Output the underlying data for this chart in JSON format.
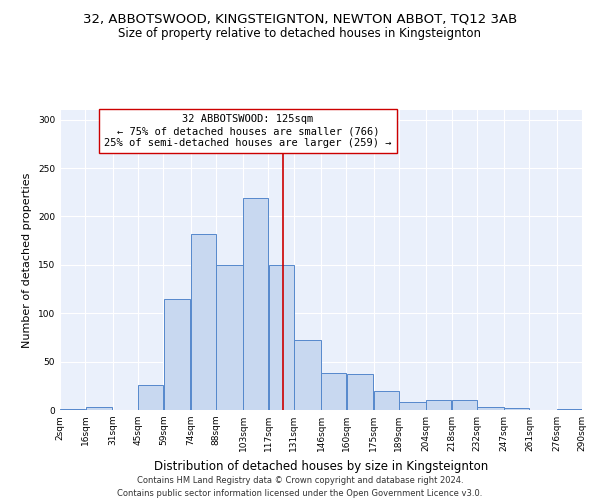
{
  "title": "32, ABBOTSWOOD, KINGSTEIGNTON, NEWTON ABBOT, TQ12 3AB",
  "subtitle": "Size of property relative to detached houses in Kingsteignton",
  "xlabel": "Distribution of detached houses by size in Kingsteignton",
  "ylabel": "Number of detached properties",
  "footer_line1": "Contains HM Land Registry data © Crown copyright and database right 2024.",
  "footer_line2": "Contains public sector information licensed under the Open Government Licence v3.0.",
  "annotation_line1": "32 ABBOTSWOOD: 125sqm",
  "annotation_line2": "← 75% of detached houses are smaller (766)",
  "annotation_line3": "25% of semi-detached houses are larger (259) →",
  "bar_color": "#c8d8f0",
  "bar_edge_color": "#5588cc",
  "vline_color": "#cc0000",
  "vline_x": 125,
  "bin_edges": [
    2,
    16,
    31,
    45,
    59,
    74,
    88,
    103,
    117,
    131,
    146,
    160,
    175,
    189,
    204,
    218,
    232,
    247,
    261,
    276,
    290
  ],
  "bar_heights": [
    1,
    3,
    0,
    26,
    115,
    182,
    150,
    219,
    150,
    72,
    38,
    37,
    20,
    8,
    10,
    10,
    3,
    2,
    0,
    1
  ],
  "xlim": [
    2,
    290
  ],
  "ylim": [
    0,
    310
  ],
  "yticks": [
    0,
    50,
    100,
    150,
    200,
    250,
    300
  ],
  "background_color": "#eaf0fb",
  "annotation_box_color": "white",
  "annotation_box_edge_color": "#cc0000",
  "title_fontsize": 9.5,
  "subtitle_fontsize": 8.5,
  "xlabel_fontsize": 8.5,
  "ylabel_fontsize": 8,
  "tick_fontsize": 6.5,
  "annotation_fontsize": 7.5,
  "footer_fontsize": 6.0
}
